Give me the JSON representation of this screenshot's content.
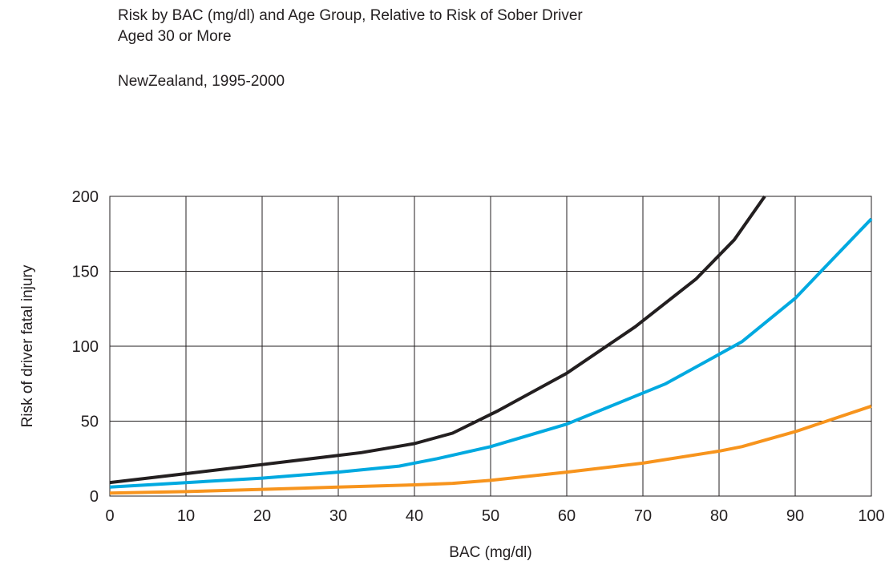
{
  "header": {
    "title_line1": "Risk by BAC (mg/dl) and Age Group, Relative to Risk of Sober Driver",
    "title_line2": "Aged 30 or More",
    "subtitle": "NewZealand, 1995-2000"
  },
  "chart_data": {
    "type": "line",
    "title": "Risk by BAC (mg/dl) and Age Group, Relative to Risk of Sober Driver Aged 30 or More",
    "subtitle": "NewZealand, 1995-2000",
    "xlabel": "BAC (mg/dl)",
    "ylabel": "Risk of driver fatal injury",
    "xlim": [
      0,
      100
    ],
    "ylim": [
      0,
      200
    ],
    "xticks": [
      0,
      10,
      20,
      30,
      40,
      50,
      60,
      70,
      80,
      90,
      100
    ],
    "yticks": [
      0,
      50,
      100,
      150,
      200
    ],
    "grid": true,
    "legend": "none",
    "series": [
      {
        "color": "#231f20",
        "points": [
          [
            0,
            9
          ],
          [
            10,
            15
          ],
          [
            20,
            21
          ],
          [
            33,
            29
          ],
          [
            40,
            35
          ],
          [
            45,
            42
          ],
          [
            51,
            57
          ],
          [
            60,
            82
          ],
          [
            69,
            113
          ],
          [
            77,
            145
          ],
          [
            82,
            171
          ],
          [
            86,
            200
          ]
        ]
      },
      {
        "color": "#00a9e0",
        "points": [
          [
            0,
            6
          ],
          [
            10,
            9
          ],
          [
            20,
            12
          ],
          [
            30,
            16
          ],
          [
            38,
            20
          ],
          [
            43,
            25
          ],
          [
            50,
            33
          ],
          [
            60,
            48
          ],
          [
            73,
            75
          ],
          [
            83,
            103
          ],
          [
            90,
            132
          ],
          [
            100,
            185
          ]
        ]
      },
      {
        "color": "#f7941d",
        "points": [
          [
            0,
            2
          ],
          [
            10,
            3
          ],
          [
            20,
            4.5
          ],
          [
            30,
            6
          ],
          [
            40,
            7.5
          ],
          [
            45,
            8.5
          ],
          [
            50,
            10.5
          ],
          [
            60,
            16
          ],
          [
            70,
            22
          ],
          [
            80,
            30
          ],
          [
            83,
            33
          ],
          [
            90,
            43
          ],
          [
            100,
            60
          ]
        ]
      }
    ]
  }
}
